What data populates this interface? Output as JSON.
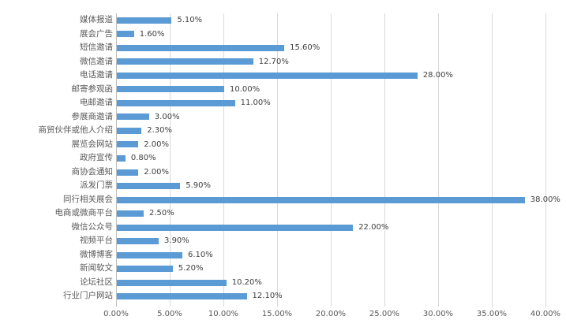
{
  "chart_data": {
    "type": "bar",
    "orientation": "horizontal",
    "title": "",
    "xlabel": "",
    "ylabel": "",
    "xlim": [
      0,
      40
    ],
    "grid": "vertical",
    "legend": "none",
    "categories": [
      "媒体报道",
      "展会广告",
      "短信邀请",
      "微信邀请",
      "电话邀请",
      "邮寄参观函",
      "电邮邀请",
      "参展商邀请",
      "商贸伙伴或他人介绍",
      "展览会网站",
      "政府宣传",
      "商协会通知",
      "派发门票",
      "同行相关展会",
      "电商或微商平台",
      "微信公众号",
      "视频平台",
      "微博博客",
      "新闻软文",
      "论坛社区",
      "行业门户网站"
    ],
    "values": [
      5.1,
      1.6,
      15.6,
      12.7,
      28.0,
      10.0,
      11.0,
      3.0,
      2.3,
      2.0,
      0.8,
      2.0,
      5.9,
      38.0,
      2.5,
      22.0,
      3.9,
      6.1,
      5.2,
      10.2,
      12.1
    ],
    "data_labels": [
      "5.10%",
      "1.60%",
      "15.60%",
      "12.70%",
      "28.00%",
      "10.00%",
      "11.00%",
      "3.00%",
      "2.30%",
      "2.00%",
      "0.80%",
      "2.00%",
      "5.90%",
      "38.00%",
      "2.50%",
      "22.00%",
      "3.90%",
      "6.10%",
      "5.20%",
      "10.20%",
      "12.10%"
    ],
    "x_ticks": [
      "0.00%",
      "5.00%",
      "10.00%",
      "15.00%",
      "20.00%",
      "25.00%",
      "30.00%",
      "35.00%",
      "40.00%"
    ],
    "x_tick_values": [
      0,
      5,
      10,
      15,
      20,
      25,
      30,
      35,
      40
    ],
    "colors": {
      "bar": "#5b9bd5",
      "gridline": "#d9d9d9",
      "axis_line": "#bfbfbf",
      "category_text": "#595959",
      "data_label_text": "#404040",
      "tick_text": "#595959",
      "background": "#ffffff"
    }
  }
}
